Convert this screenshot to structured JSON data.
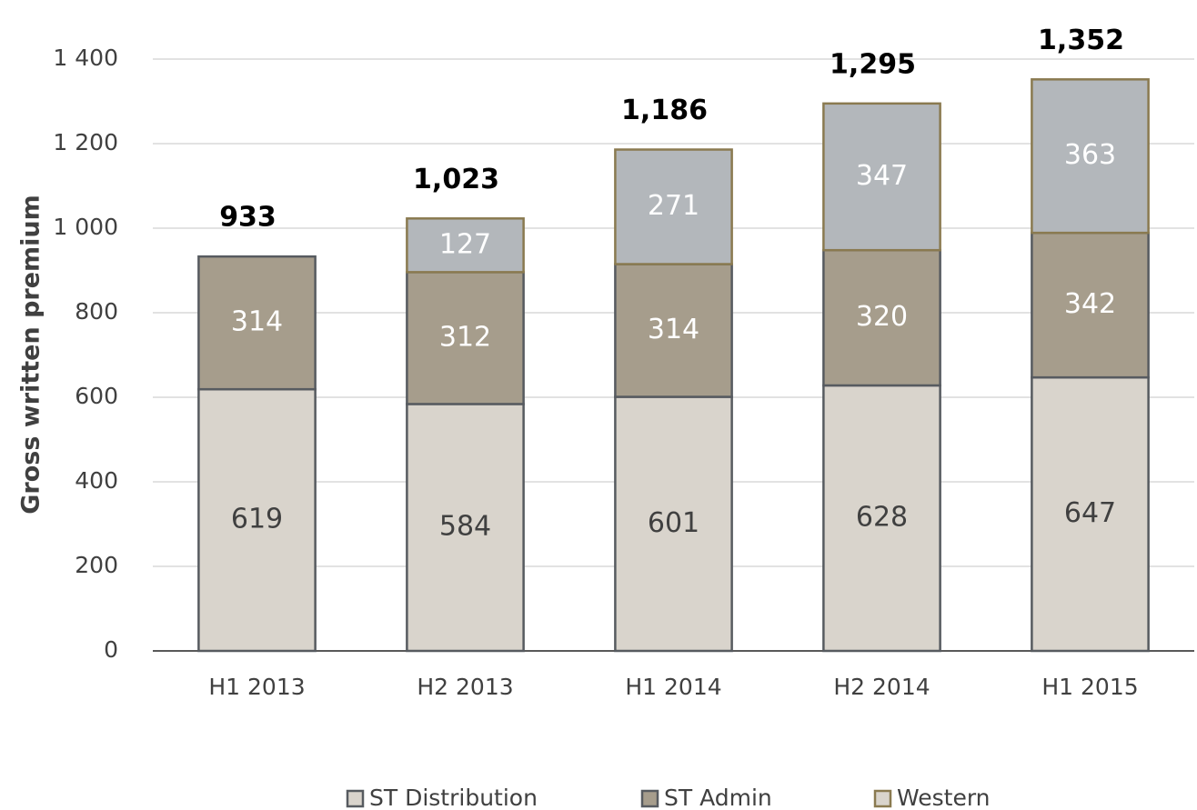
{
  "chart_data": {
    "type": "stacked_bar",
    "y_label": "Gross written premium",
    "categories": [
      "H1 2013",
      "H2 2013",
      "H1 2014",
      "H2 2014",
      "H1 2015"
    ],
    "series": [
      {
        "name": "ST Distribution",
        "color": "#d9d4cc",
        "edgecolor": "#575b60",
        "label_color": "#404040",
        "values": [
          619,
          584,
          601,
          628,
          647
        ]
      },
      {
        "name": "ST Admin",
        "color": "#a69d8c",
        "edgecolor": "#575b60",
        "label_color": "#ffffff",
        "values": [
          314,
          312,
          314,
          320,
          342
        ]
      },
      {
        "name": "Western",
        "color": "#b3b7bb",
        "edgecolor": "#8a7a50",
        "label_color": "#ffffff",
        "values": [
          null,
          127,
          271,
          347,
          363
        ]
      }
    ],
    "totals": {
      "values": [
        933,
        1023,
        1186,
        1295,
        1352
      ],
      "value_labels": [
        "933",
        "1,023",
        "1,186",
        "1,295",
        "1,352"
      ]
    },
    "ylim": [
      0,
      1400
    ],
    "yticks": [
      0,
      200,
      400,
      600,
      800,
      {
        "value": 1000,
        "label": "1 000"
      },
      {
        "value": 1200,
        "label": "1 200"
      },
      {
        "value": 1400,
        "label": "1 400"
      }
    ],
    "grid": true
  }
}
